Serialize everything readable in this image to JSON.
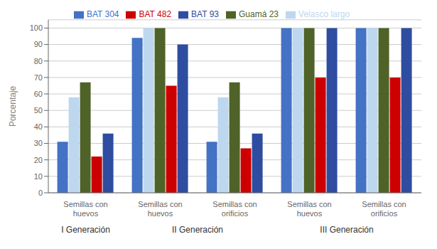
{
  "chart_data": {
    "type": "bar",
    "categories": [
      "Semillas con\nhuevos",
      "Semillas con\nhuevos",
      "Semillas con\norificios",
      "Semillas con\nhuevos",
      "Semillas con\norificios"
    ],
    "series": [
      {
        "name": "BAT 304",
        "color": "#4472C4",
        "values": [
          31,
          94,
          31,
          100,
          100
        ]
      },
      {
        "name": "Velasco largo",
        "color": "#BDD7EE",
        "values": [
          58,
          100,
          58,
          100,
          100
        ]
      },
      {
        "name": "Guamá 23",
        "color": "#4F6228",
        "values": [
          67,
          100,
          67,
          100,
          100
        ]
      },
      {
        "name": "BAT 482",
        "color": "#CC0000",
        "values": [
          22,
          65,
          27,
          70,
          70
        ]
      },
      {
        "name": "BAT 93",
        "color": "#2E4DA0",
        "values": [
          36,
          90,
          36,
          100,
          100
        ]
      }
    ],
    "ylabel": "Porcentaje",
    "ylim": [
      0,
      105
    ],
    "yticks": [
      0,
      10,
      20,
      30,
      40,
      50,
      60,
      70,
      80,
      90,
      100
    ],
    "grid": true,
    "legend": "top",
    "annotations": [
      {
        "text": "I Generación",
        "x": 0
      },
      {
        "text": "II Generación",
        "x": 1.5
      },
      {
        "text": "III Generación",
        "x": 3.5
      }
    ]
  }
}
